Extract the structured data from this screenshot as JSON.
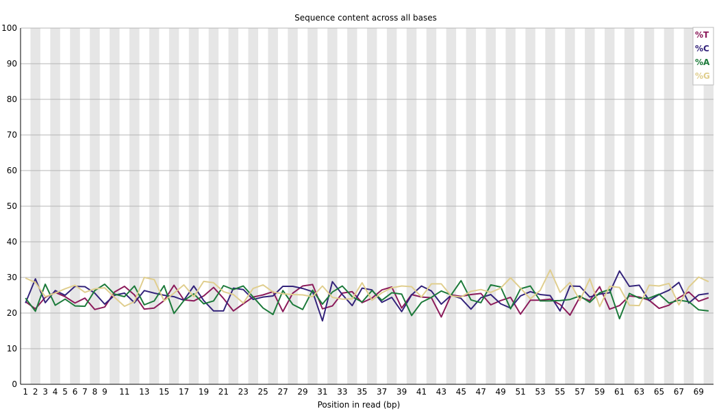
{
  "chart_data": {
    "type": "line",
    "title": "Sequence content across all bases",
    "xlabel": "Position in read (bp)",
    "ylabel": "",
    "ylim": [
      0,
      100
    ],
    "yticks": [
      0,
      10,
      20,
      30,
      40,
      50,
      60,
      70,
      80,
      90,
      100
    ],
    "x": [
      1,
      2,
      3,
      4,
      5,
      6,
      7,
      8,
      9,
      10,
      11,
      12,
      13,
      14,
      15,
      16,
      17,
      18,
      19,
      20,
      21,
      22,
      23,
      24,
      25,
      26,
      27,
      28,
      29,
      30,
      31,
      32,
      33,
      34,
      35,
      36,
      37,
      38,
      39,
      40,
      41,
      42,
      43,
      44,
      45,
      46,
      47,
      48,
      49,
      50,
      51,
      52,
      53,
      54,
      55,
      56,
      57,
      58,
      59,
      60,
      61,
      62,
      63,
      64,
      65,
      66,
      67,
      68,
      69,
      70
    ],
    "xtick_labels": [
      "1",
      "2",
      "3",
      "4",
      "5",
      "6",
      "7",
      "8",
      "9",
      "11",
      "13",
      "15",
      "17",
      "19",
      "21",
      "23",
      "25",
      "27",
      "29",
      "31",
      "33",
      "35",
      "37",
      "39",
      "41",
      "43",
      "45",
      "47",
      "49",
      "51",
      "53",
      "55",
      "57",
      "59",
      "61",
      "63",
      "65",
      "67",
      "69"
    ],
    "xtick_positions": [
      1,
      2,
      3,
      4,
      5,
      6,
      7,
      8,
      9,
      11,
      13,
      15,
      17,
      19,
      21,
      23,
      25,
      27,
      29,
      31,
      33,
      35,
      37,
      39,
      41,
      43,
      45,
      47,
      49,
      51,
      53,
      55,
      57,
      59,
      61,
      63,
      65,
      67,
      69
    ],
    "grid": true,
    "legend_position": "top-right",
    "series": [
      {
        "name": "%T",
        "color": "#8b1a5a",
        "values": [
          23.2,
          21.2,
          24.4,
          25.8,
          24.6,
          22.8,
          24.2,
          21.0,
          21.7,
          25.9,
          27.5,
          25.1,
          21.1,
          21.4,
          23.5,
          27.8,
          23.7,
          23.4,
          24.8,
          27.2,
          24.1,
          20.6,
          22.6,
          24.5,
          25.1,
          26.0,
          20.4,
          25.6,
          27.6,
          28.0,
          21.2,
          22.0,
          25.6,
          26.0,
          22.9,
          24.2,
          26.5,
          27.3,
          21.4,
          25.2,
          24.5,
          24.3,
          18.9,
          25.1,
          24.7,
          25.2,
          25.5,
          22.3,
          23.5,
          24.4,
          19.7,
          23.6,
          23.6,
          23.9,
          22.4,
          19.4,
          24.5,
          23.5,
          27.4,
          21.1,
          22.1,
          24.8,
          24.5,
          23.6,
          21.3,
          22.2,
          24.3,
          25.9,
          23.3,
          24.3
        ]
      },
      {
        "name": "%C",
        "color": "#33237a",
        "values": [
          22.8,
          29.6,
          22.9,
          26.3,
          25.0,
          27.5,
          27.4,
          25.6,
          22.5,
          25.0,
          25.6,
          22.9,
          26.3,
          25.6,
          25.0,
          24.6,
          23.6,
          27.6,
          23.5,
          20.6,
          20.6,
          27.0,
          26.6,
          23.8,
          24.5,
          24.8,
          27.5,
          27.5,
          26.9,
          26.0,
          17.8,
          28.8,
          25.2,
          22.1,
          27.0,
          26.5,
          23.0,
          24.4,
          20.4,
          25.1,
          27.6,
          26.2,
          22.5,
          25.0,
          24.1,
          21.1,
          24.3,
          25.2,
          22.6,
          21.4,
          24.8,
          26.0,
          25.2,
          24.9,
          20.6,
          27.6,
          27.5,
          24.5,
          25.3,
          25.7,
          31.8,
          27.5,
          27.8,
          23.5,
          25.2,
          26.4,
          28.6,
          22.8,
          25.1,
          25.5
        ]
      },
      {
        "name": "%A",
        "color": "#1c7a3a",
        "values": [
          24.2,
          20.5,
          28.1,
          22.2,
          23.9,
          22.0,
          21.9,
          26.3,
          28.1,
          25.3,
          24.6,
          27.6,
          22.3,
          23.4,
          27.7,
          19.9,
          23.5,
          25.4,
          22.6,
          23.4,
          27.7,
          26.6,
          27.6,
          24.5,
          21.4,
          19.6,
          26.3,
          22.4,
          21.0,
          26.4,
          22.5,
          25.9,
          27.6,
          24.6,
          23.1,
          26.3,
          23.6,
          25.7,
          25.3,
          19.3,
          23.0,
          24.4,
          26.2,
          25.1,
          29.1,
          23.7,
          22.9,
          27.9,
          27.3,
          21.2,
          26.8,
          27.6,
          23.4,
          23.4,
          23.5,
          23.8,
          24.8,
          23.0,
          25.7,
          26.6,
          18.4,
          25.5,
          24.2,
          24.2,
          25.3,
          22.8,
          23.6,
          23.2,
          20.9,
          20.6
        ]
      },
      {
        "name": "%G",
        "color": "#e0ce8e",
        "values": [
          29.8,
          28.6,
          24.6,
          25.6,
          26.8,
          27.8,
          25.8,
          26.8,
          27.1,
          24.4,
          21.9,
          23.2,
          30.0,
          29.4,
          23.4,
          25.6,
          27.9,
          24.6,
          28.9,
          28.5,
          26.0,
          25.2,
          22.8,
          26.9,
          27.9,
          25.9,
          25.4,
          25.2,
          25.1,
          24.6,
          27.6,
          24.4,
          23.9,
          24.0,
          28.5,
          23.6,
          25.7,
          27.1,
          27.6,
          27.4,
          24.5,
          28.2,
          28.2,
          24.8,
          24.5,
          26.1,
          26.6,
          25.8,
          27.0,
          29.9,
          27.0,
          24.0,
          26.4,
          32.1,
          25.8,
          28.6,
          23.5,
          29.6,
          21.8,
          27.5,
          27.2,
          22.2,
          22.1,
          27.8,
          27.6,
          28.3,
          22.3,
          27.3,
          30.1,
          28.8
        ]
      }
    ]
  }
}
